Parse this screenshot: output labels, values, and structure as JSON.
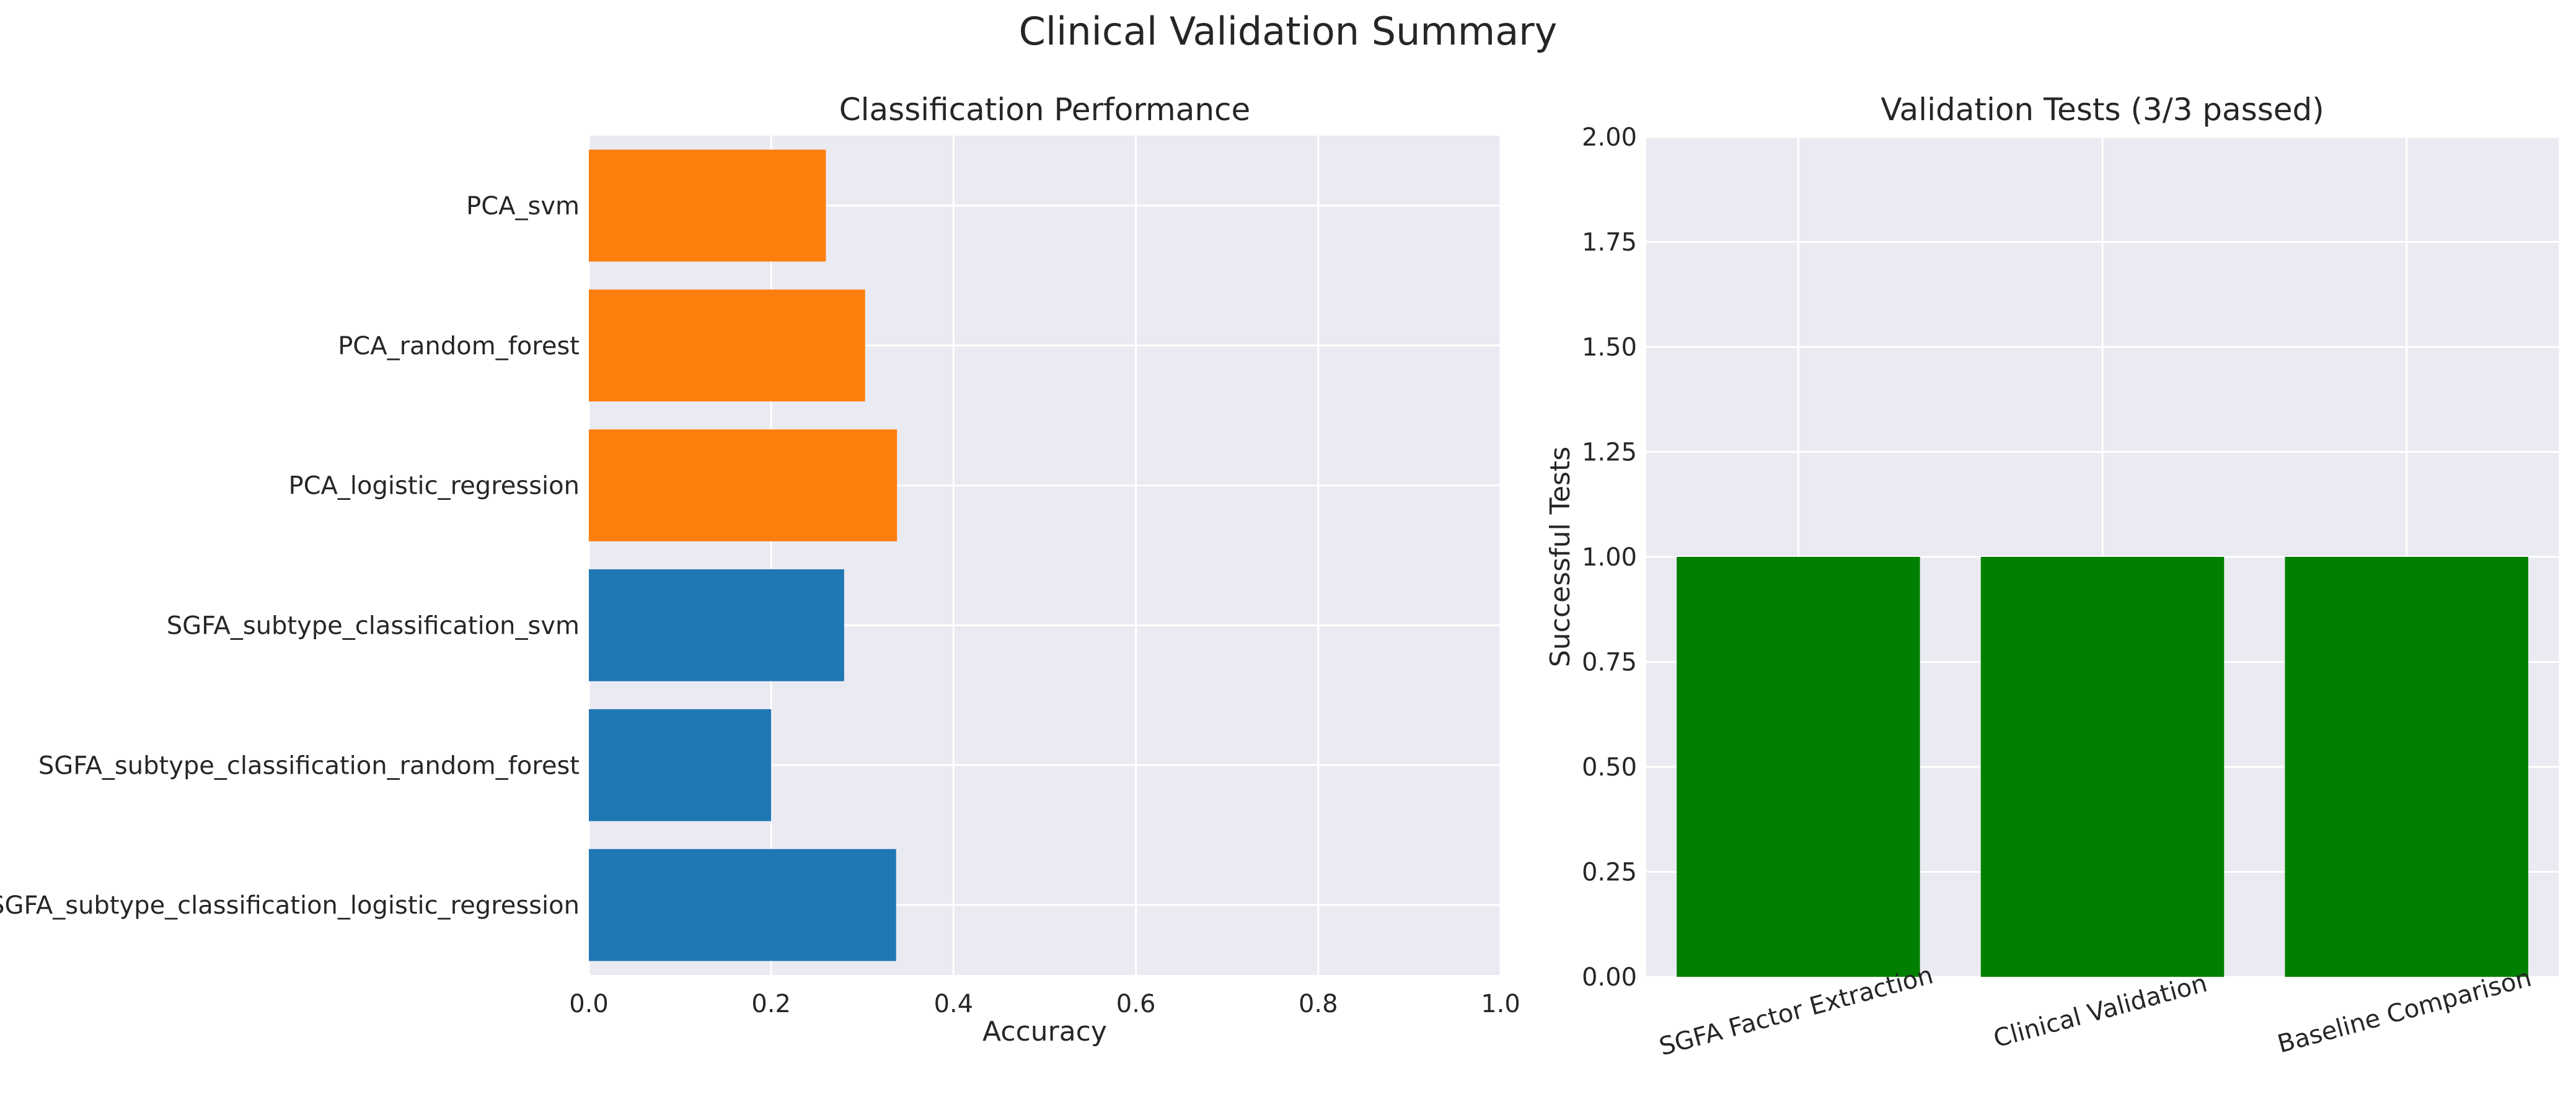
{
  "figure": {
    "title": "Clinical Validation Summary"
  },
  "chart_data": [
    {
      "type": "bar",
      "orientation": "horizontal",
      "title": "Classification Performance",
      "xlabel": "Accuracy",
      "ylabel": "",
      "xlim": [
        0,
        1
      ],
      "x_ticks": [
        "0.0",
        "0.2",
        "0.4",
        "0.6",
        "0.8",
        "1.0"
      ],
      "grid": true,
      "categories": [
        "PCA_svm",
        "PCA_random_forest",
        "PCA_logistic_regression",
        "SGFA_subtype_classification_svm",
        "SGFA_subtype_classification_random_forest",
        "SGFA_subtype_classification_logistic_regression"
      ],
      "values": [
        0.26,
        0.303,
        0.338,
        0.28,
        0.2,
        0.337
      ],
      "bar_colors": [
        "#ff7f0e",
        "#ff7f0e",
        "#ff7f0e",
        "#1f77b4",
        "#1f77b4",
        "#1f77b4"
      ]
    },
    {
      "type": "bar",
      "title": "Validation Tests (3/3 passed)",
      "xlabel": "",
      "ylabel": "Successful Tests",
      "ylim": [
        0,
        2
      ],
      "y_ticks": [
        "0.00",
        "0.25",
        "0.50",
        "0.75",
        "1.00",
        "1.25",
        "1.50",
        "1.75",
        "2.00"
      ],
      "grid": true,
      "categories": [
        "SGFA Factor Extraction",
        "Clinical Validation",
        "Baseline Comparison"
      ],
      "values": [
        1,
        1,
        1
      ],
      "bar_color": "#008000"
    }
  ]
}
